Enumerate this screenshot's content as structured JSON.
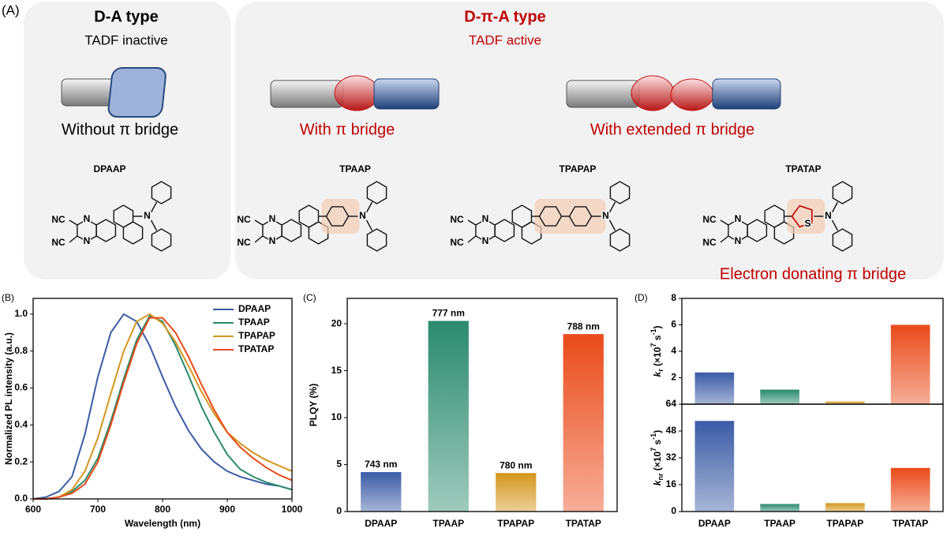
{
  "panel_a": {
    "label": "(A)",
    "da": {
      "title": "D-A type",
      "subtitle": "TADF inactive",
      "caption": "Without π bridge"
    },
    "dpa": {
      "title": "D-π-A type",
      "subtitle": "TADF active",
      "captions": [
        "With π bridge",
        "With extended π bridge"
      ]
    },
    "molecules": [
      {
        "name": "DPAAP",
        "atoms": [
          "NC",
          "NC",
          "N",
          "N",
          "N"
        ]
      },
      {
        "name": "TPAAP",
        "atoms": [
          "NC",
          "NC",
          "N",
          "N",
          "N"
        ]
      },
      {
        "name": "TPAPAP",
        "atoms": [
          "NC",
          "NC",
          "N",
          "N",
          "N"
        ]
      },
      {
        "name": "TPATAP",
        "atoms": [
          "NC",
          "NC",
          "N",
          "N",
          "N",
          "S"
        ]
      }
    ],
    "note": "Electron donating π bridge"
  },
  "chart_data": [
    {
      "type": "line",
      "label": "(B)",
      "xlabel": "Wavelength (nm)",
      "ylabel": "Normalized PL intensity (a.u.)",
      "x": [
        600,
        620,
        640,
        660,
        680,
        700,
        720,
        740,
        760,
        780,
        800,
        820,
        840,
        860,
        880,
        900,
        920,
        940,
        960,
        980,
        1000
      ],
      "series": [
        {
          "name": "DPAAP",
          "color": "#3b5ba5",
          "values": [
            0,
            0.01,
            0.04,
            0.12,
            0.35,
            0.66,
            0.9,
            1.0,
            0.96,
            0.83,
            0.66,
            0.5,
            0.37,
            0.27,
            0.2,
            0.15,
            0.12,
            0.1,
            0.08,
            0.07,
            0.05
          ]
        },
        {
          "name": "TPAAP",
          "color": "#2a8a6c",
          "values": [
            0,
            0,
            0.01,
            0.04,
            0.1,
            0.22,
            0.42,
            0.65,
            0.86,
            0.99,
            0.96,
            0.83,
            0.67,
            0.5,
            0.36,
            0.24,
            0.16,
            0.12,
            0.09,
            0.07,
            0.05
          ]
        },
        {
          "name": "TPAPAP",
          "color": "#d4961e",
          "values": [
            0,
            0,
            0.01,
            0.05,
            0.15,
            0.33,
            0.57,
            0.8,
            0.96,
            1.0,
            0.95,
            0.85,
            0.72,
            0.58,
            0.46,
            0.36,
            0.3,
            0.25,
            0.21,
            0.18,
            0.15
          ]
        },
        {
          "name": "TPATAP",
          "color": "#ea4a1a",
          "values": [
            0,
            0,
            0.01,
            0.03,
            0.08,
            0.2,
            0.4,
            0.63,
            0.84,
            0.98,
            0.98,
            0.9,
            0.77,
            0.62,
            0.48,
            0.36,
            0.28,
            0.22,
            0.17,
            0.13,
            0.1
          ]
        }
      ],
      "xlim": [
        600,
        1000
      ],
      "xticks": [
        600,
        700,
        800,
        900,
        1000
      ],
      "ylim": [
        0,
        1.085
      ],
      "yticks": [
        {
          "value": 0,
          "label": "0.0"
        },
        {
          "value": 0.2,
          "label": "0.2"
        },
        {
          "value": 0.4,
          "label": "0.4"
        },
        {
          "value": 0.6,
          "label": "0.6"
        },
        {
          "value": 0.8,
          "label": "0.8"
        },
        {
          "value": 1,
          "label": "1.0"
        }
      ],
      "legend": "upper right"
    },
    {
      "type": "bar",
      "label": "(C)",
      "ylabel": "PLQY (%)",
      "categories": [
        "DPAAP",
        "TPAAP",
        "TPAPAP",
        "TPATAP"
      ],
      "values": [
        4.2,
        20.3,
        4.1,
        18.9
      ],
      "annotations": [
        "743 nm",
        "777 nm",
        "780 nm",
        "788 nm"
      ],
      "colors": [
        "#3b5ba5",
        "#2a8a6c",
        "#d4961e",
        "#ea4a1a"
      ],
      "ylim": [
        0,
        22.7
      ],
      "yticks": [
        0,
        5,
        10,
        15,
        20
      ]
    },
    {
      "type": "bar",
      "label": "(D)",
      "ylabel": [
        {
          "text": "k",
          "style": "italic"
        },
        {
          "text": "r",
          "style": "sub"
        },
        {
          "text": " (×10",
          "style": "normal"
        },
        {
          "text": "7",
          "style": "sup"
        },
        {
          "text": " s",
          "style": "normal"
        },
        {
          "text": "-1",
          "style": "sup"
        },
        {
          "text": ")",
          "style": "normal"
        }
      ],
      "values": [
        2.4,
        1.1,
        0.2,
        6.0
      ],
      "colors": [
        "#3b5ba5",
        "#2a8a6c",
        "#d4961e",
        "#ea4a1a"
      ],
      "ylim": [
        0,
        8
      ],
      "yticks": [
        2,
        4,
        6,
        8
      ]
    },
    {
      "type": "bar",
      "ylabel": [
        {
          "text": "k",
          "style": "italic"
        },
        {
          "text": "nr",
          "style": "sub"
        },
        {
          "text": " (×10",
          "style": "normal"
        },
        {
          "text": "7",
          "style": "sup"
        },
        {
          "text": " s",
          "style": "normal"
        },
        {
          "text": "-1",
          "style": "sup"
        },
        {
          "text": ")",
          "style": "normal"
        }
      ],
      "categories": [
        "DPAAP",
        "TPAAP",
        "TPAPAP",
        "TPATAP"
      ],
      "values": [
        54,
        4.5,
        5,
        26
      ],
      "colors": [
        "#3b5ba5",
        "#2a8a6c",
        "#d4961e",
        "#ea4a1a"
      ],
      "ylim": [
        0,
        64
      ],
      "yticks": [
        0,
        16,
        32,
        48,
        64
      ]
    }
  ]
}
